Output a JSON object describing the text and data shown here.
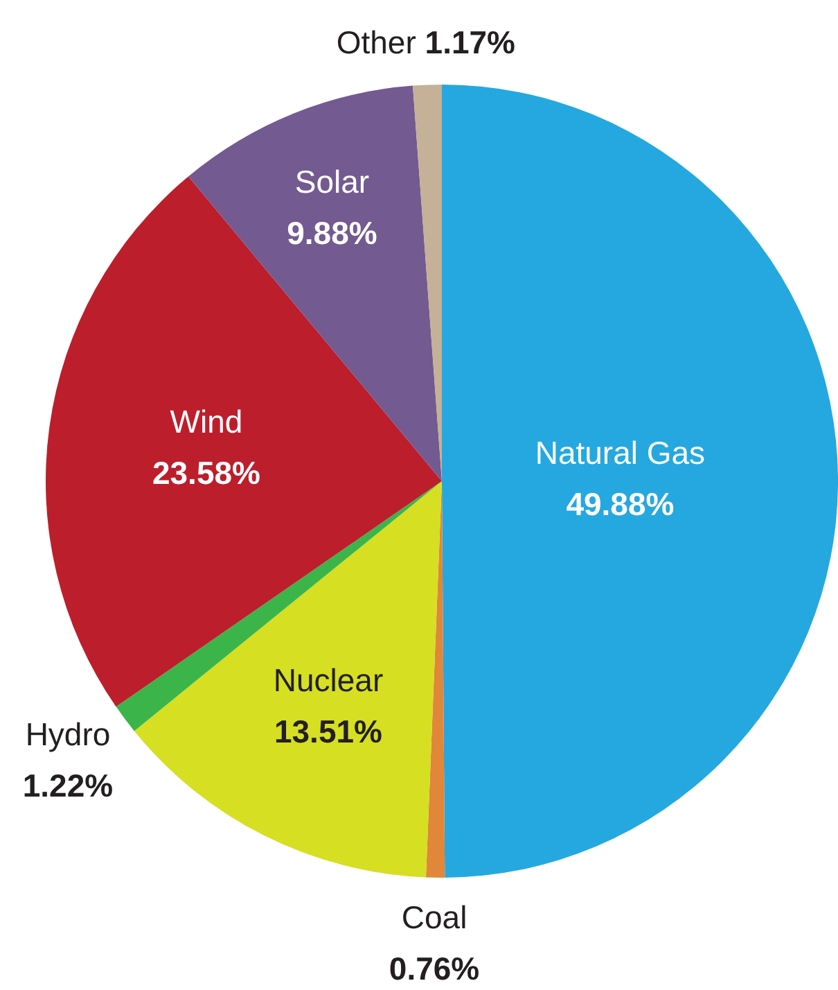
{
  "chart_data": {
    "type": "pie",
    "categories": [
      "Natural Gas",
      "Coal",
      "Nuclear",
      "Hydro",
      "Wind",
      "Solar",
      "Other"
    ],
    "values": [
      49.88,
      0.76,
      13.51,
      1.22,
      23.58,
      9.88,
      1.17
    ],
    "colors": [
      "#25a8e0",
      "#e0873a",
      "#d6df22",
      "#3bb54a",
      "#bd1e2c",
      "#735a91",
      "#c4b197"
    ],
    "value_labels": [
      "49.88%",
      "0.76%",
      "13.51%",
      "1.22%",
      "23.58%",
      "9.88%",
      "1.17%"
    ]
  }
}
